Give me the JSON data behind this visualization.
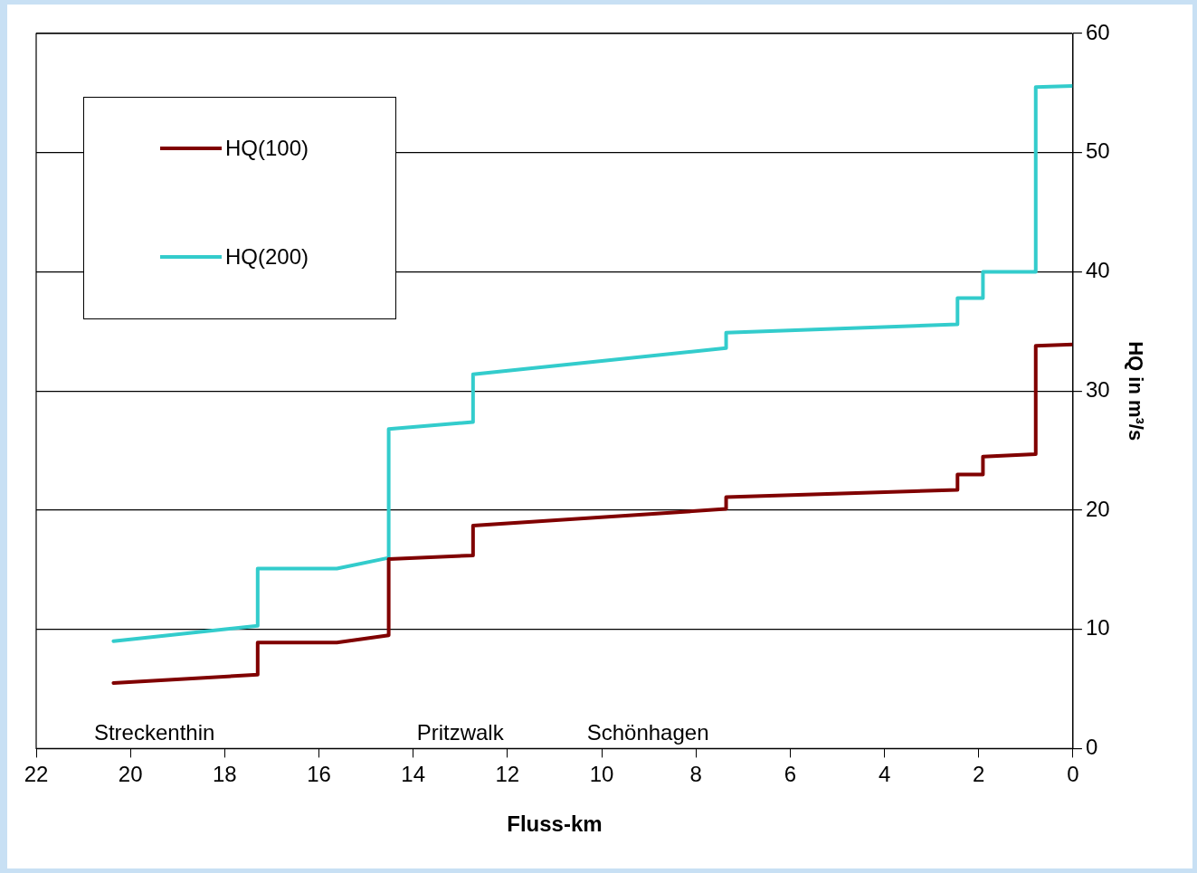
{
  "chart_data": {
    "type": "line",
    "xlabel": "Fluss-km",
    "ylabel": "HQ in m³/s",
    "xlim": [
      22,
      0
    ],
    "xticks": [
      22,
      20,
      18,
      16,
      14,
      12,
      10,
      8,
      6,
      4,
      2,
      0
    ],
    "ylim": [
      0,
      60
    ],
    "yticks": [
      0,
      10,
      20,
      30,
      40,
      50,
      60
    ],
    "grid": "y",
    "legend": "top left",
    "marker": "none",
    "line_style": "solid",
    "series": [
      {
        "name": "HQ(100)",
        "color": "#800000",
        "x": [
          20.36,
          17.3,
          17.3,
          15.62,
          14.52,
          14.52,
          12.73,
          12.73,
          7.36,
          7.36,
          2.45,
          2.45,
          1.91,
          1.91,
          0.79,
          0.79,
          0
        ],
        "values": [
          5.5,
          6.2,
          8.9,
          8.9,
          9.5,
          15.9,
          16.2,
          18.7,
          20.1,
          21.1,
          21.7,
          23.0,
          23.0,
          24.5,
          24.7,
          33.8,
          33.9
        ]
      },
      {
        "name": "HQ(200)",
        "color": "#33cccc",
        "x": [
          20.36,
          17.3,
          17.3,
          15.62,
          14.52,
          14.52,
          12.73,
          12.73,
          7.36,
          7.36,
          2.45,
          2.45,
          1.91,
          1.91,
          0.79,
          0.79,
          0
        ],
        "values": [
          9.0,
          10.3,
          15.1,
          15.1,
          16.0,
          26.8,
          27.4,
          31.4,
          33.6,
          34.9,
          35.6,
          37.8,
          37.8,
          40.0,
          40.0,
          55.5,
          55.6
        ]
      }
    ],
    "annotations": [
      "Streckenthin",
      "Pritzwalk",
      "Schönhagen"
    ]
  }
}
